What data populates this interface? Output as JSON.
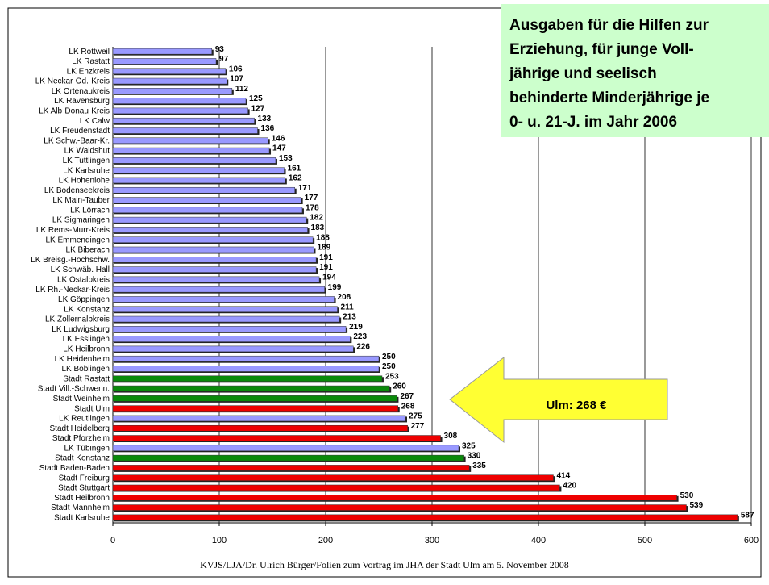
{
  "chart_data": {
    "type": "bar",
    "orientation": "horizontal",
    "title": [
      "Ausgaben für die Hilfen zur",
      "Erziehung, für junge Voll-",
      "jährige und seelisch",
      "behinderte Minderjährige je",
      "0- u. 21-J. im Jahr 2006"
    ],
    "annotation": "Ulm: 268 €",
    "footer": "KVJS/LJA/Dr. Ulrich Bürger/Folien zum Vortrag im JHA der Stadt Ulm am 5. November 2008",
    "categories": [
      "LK Rottweil",
      "LK Rastatt",
      "LK Enzkreis",
      "LK Neckar-Od.-Kreis",
      "LK Ortenaukreis",
      "LK Ravensburg",
      "LK Alb-Donau-Kreis",
      "LK Calw",
      "LK Freudenstadt",
      "LK Schw.-Baar-Kr.",
      "LK Waldshut",
      "LK Tuttlingen",
      "LK Karlsruhe",
      "LK Hohenlohe",
      "LK Bodenseekreis",
      "LK Main-Tauber",
      "LK Lörrach",
      "LK Sigmaringen",
      "LK Rems-Murr-Kreis",
      "LK Emmendingen",
      "LK Biberach",
      "LK Breisg.-Hochschw.",
      "LK Schwäb. Hall",
      "LK Ostalbkreis",
      "LK Rh.-Neckar-Kreis",
      "LK Göppingen",
      "LK Konstanz",
      "LK Zollernalbkreis",
      "LK Ludwigsburg",
      "LK Esslingen",
      "LK Heilbronn",
      "LK Heidenheim",
      "LK Böblingen",
      "Stadt Rastatt",
      "Stadt Vill.-Schwenn.",
      "Stadt Weinheim",
      "Stadt Ulm",
      "LK Reutlingen",
      "Stadt Heidelberg",
      "Stadt Pforzheim",
      "LK Tübingen",
      "Stadt Konstanz",
      "Stadt Baden-Baden",
      "Stadt Freiburg",
      "Stadt Stuttgart",
      "Stadt Heilbronn",
      "Stadt Mannheim",
      "Stadt Karlsruhe"
    ],
    "values": [
      93,
      97,
      106,
      107,
      112,
      125,
      127,
      133,
      136,
      146,
      147,
      153,
      161,
      162,
      171,
      177,
      178,
      182,
      183,
      188,
      189,
      191,
      191,
      194,
      199,
      208,
      211,
      213,
      219,
      223,
      226,
      250,
      250,
      253,
      260,
      267,
      268,
      275,
      277,
      308,
      325,
      330,
      335,
      414,
      420,
      530,
      539,
      587
    ],
    "colors": [
      "#9999ff",
      "#9999ff",
      "#9999ff",
      "#9999ff",
      "#9999ff",
      "#9999ff",
      "#9999ff",
      "#9999ff",
      "#9999ff",
      "#9999ff",
      "#9999ff",
      "#9999ff",
      "#9999ff",
      "#9999ff",
      "#9999ff",
      "#9999ff",
      "#9999ff",
      "#9999ff",
      "#9999ff",
      "#9999ff",
      "#9999ff",
      "#9999ff",
      "#9999ff",
      "#9999ff",
      "#9999ff",
      "#9999ff",
      "#9999ff",
      "#9999ff",
      "#9999ff",
      "#9999ff",
      "#9999ff",
      "#9999ff",
      "#9999ff",
      "#0a8a0a",
      "#0a8a0a",
      "#0a8a0a",
      "#ee0000",
      "#9999ff",
      "#ee0000",
      "#ee0000",
      "#9999ff",
      "#0a8a0a",
      "#ee0000",
      "#ee0000",
      "#ee0000",
      "#ee0000",
      "#ee0000",
      "#ee0000"
    ],
    "xlim": [
      0,
      600
    ],
    "xticks": [
      0,
      100,
      200,
      300,
      400,
      500,
      600
    ],
    "grid": true
  }
}
